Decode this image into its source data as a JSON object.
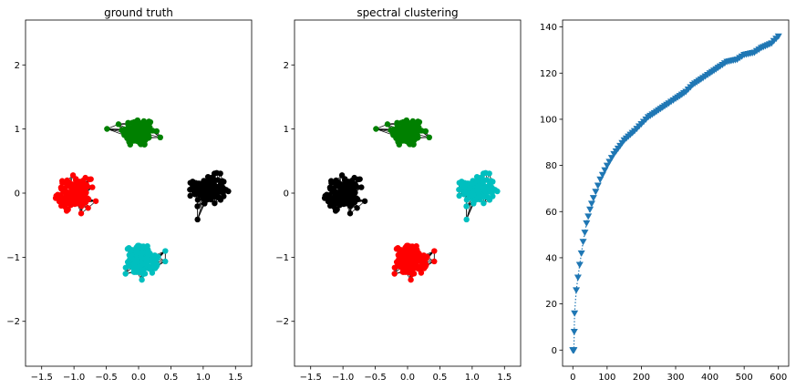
{
  "chart_data": [
    {
      "type": "scatter",
      "title": "ground truth",
      "xlim": [
        -1.75,
        1.75
      ],
      "ylim": [
        -2.7,
        2.7
      ],
      "xticks": [
        -1.5,
        -1.0,
        -0.5,
        0.0,
        0.5,
        1.0,
        1.5
      ],
      "xtick_labels": [
        "−1.5",
        "−1.0",
        "−0.5",
        "0.0",
        "0.5",
        "1.0",
        "1.5"
      ],
      "yticks": [
        -2,
        -1,
        0,
        1,
        2
      ],
      "ytick_labels": [
        "−2",
        "−1",
        "0",
        "1",
        "2"
      ],
      "grid": false,
      "edges": "k-nearest-neighbour graph drawn in black",
      "clusters": [
        {
          "color": "#008000",
          "center": [
            0.0,
            0.95
          ],
          "spread": [
            0.22,
            0.2
          ],
          "count": 150
        },
        {
          "color": "#000000",
          "center": [
            1.1,
            0.05
          ],
          "spread": [
            0.22,
            0.2
          ],
          "count": 150
        },
        {
          "color": "#ff0000",
          "center": [
            -1.0,
            0.0
          ],
          "spread": [
            0.22,
            0.2
          ],
          "count": 150
        },
        {
          "color": "#00bfbf",
          "center": [
            0.05,
            -1.05
          ],
          "spread": [
            0.22,
            0.2
          ],
          "count": 150
        }
      ]
    },
    {
      "type": "scatter",
      "title": "spectral clustering",
      "xlim": [
        -1.75,
        1.75
      ],
      "ylim": [
        -2.7,
        2.7
      ],
      "xticks": [
        -1.5,
        -1.0,
        -0.5,
        0.0,
        0.5,
        1.0,
        1.5
      ],
      "xtick_labels": [
        "−1.5",
        "−1.0",
        "−0.5",
        "0.0",
        "0.5",
        "1.0",
        "1.5"
      ],
      "yticks": [
        -2,
        -1,
        0,
        1,
        2
      ],
      "ytick_labels": [
        "−2",
        "−1",
        "0",
        "1",
        "2"
      ],
      "grid": false,
      "edges": "k-nearest-neighbour graph drawn in black",
      "clusters": [
        {
          "color": "#008000",
          "center": [
            0.0,
            0.95
          ],
          "spread": [
            0.22,
            0.2
          ],
          "count": 150
        },
        {
          "color": "#00bfbf",
          "center": [
            1.1,
            0.05
          ],
          "spread": [
            0.22,
            0.2
          ],
          "count": 150
        },
        {
          "color": "#000000",
          "center": [
            -1.0,
            0.0
          ],
          "spread": [
            0.22,
            0.2
          ],
          "count": 150
        },
        {
          "color": "#ff0000",
          "center": [
            0.05,
            -1.05
          ],
          "spread": [
            0.22,
            0.2
          ],
          "count": 150
        }
      ]
    },
    {
      "type": "line",
      "title": "",
      "xlim": [
        -30,
        630
      ],
      "ylim": [
        -7,
        143
      ],
      "xticks": [
        0,
        100,
        200,
        300,
        400,
        500,
        600
      ],
      "xtick_labels": [
        "0",
        "100",
        "200",
        "300",
        "400",
        "500",
        "600"
      ],
      "yticks": [
        0,
        20,
        40,
        60,
        80,
        100,
        120,
        140
      ],
      "ytick_labels": [
        "0",
        "20",
        "40",
        "60",
        "80",
        "100",
        "120",
        "140"
      ],
      "grid": false,
      "line_style": "dotted",
      "marker": "triangle-down",
      "color": "#1f77b4",
      "series": [
        {
          "x": [
            0,
            1,
            2,
            3,
            4,
            5,
            10,
            20,
            30,
            40,
            50,
            60,
            80,
            100,
            120,
            150,
            180,
            200,
            220,
            250,
            280,
            300,
            330,
            350,
            380,
            400,
            430,
            450,
            480,
            500,
            530,
            550,
            580,
            600
          ],
          "values": [
            0,
            0,
            0,
            0,
            8,
            16,
            26,
            37,
            47,
            55,
            61,
            66,
            74,
            80,
            85,
            91,
            95,
            98,
            101,
            104,
            107,
            109,
            112,
            115,
            118,
            120,
            123,
            125,
            126,
            128,
            129,
            131,
            133,
            136
          ]
        }
      ]
    }
  ]
}
